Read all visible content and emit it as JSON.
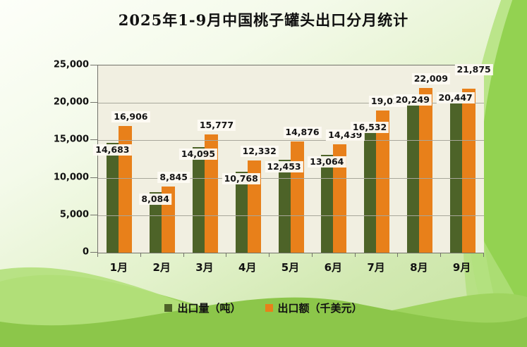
{
  "title": "2025年1-9月中国桃子罐头出口分月统计",
  "colors": {
    "volume": "#4d6328",
    "value": "#e8801a",
    "plot_bg": "#f1efe1",
    "grid": "#a8a79b",
    "axis": "#72726a",
    "label_bg": "#fcf9f1",
    "bg_bright_green": "#93d251",
    "bg_mid_green": "#9fd45f",
    "bg_dark_green": "#8cc64a",
    "bg_light_band": "#bce48f"
  },
  "chart_data": {
    "type": "bar",
    "title": "2025年1-9月中国桃子罐头出口分月统计",
    "categories": [
      "1月",
      "2月",
      "3月",
      "4月",
      "5月",
      "6月",
      "7月",
      "8月",
      "9月"
    ],
    "series": [
      {
        "name": "出口量（吨）",
        "color_key": "volume",
        "values": [
          14683,
          8084,
          14095,
          10768,
          12453,
          13064,
          16532,
          20249,
          20447
        ]
      },
      {
        "name": "出口额（千美元）",
        "color_key": "value",
        "values": [
          16906,
          8845,
          15777,
          12332,
          14876,
          14439,
          19025,
          22009,
          21875
        ]
      }
    ],
    "y_ticks": [
      "25,000",
      "20,000",
      "15,000",
      "10,000",
      "5,000",
      "0"
    ],
    "ylim": [
      0,
      25000
    ],
    "grid": true,
    "legend_position": "bottom",
    "data_labels": true
  },
  "legend": {
    "items": [
      {
        "label": "出口量（吨）",
        "swatch": "volume"
      },
      {
        "label": "出口额（千美元）",
        "swatch": "value"
      }
    ]
  }
}
